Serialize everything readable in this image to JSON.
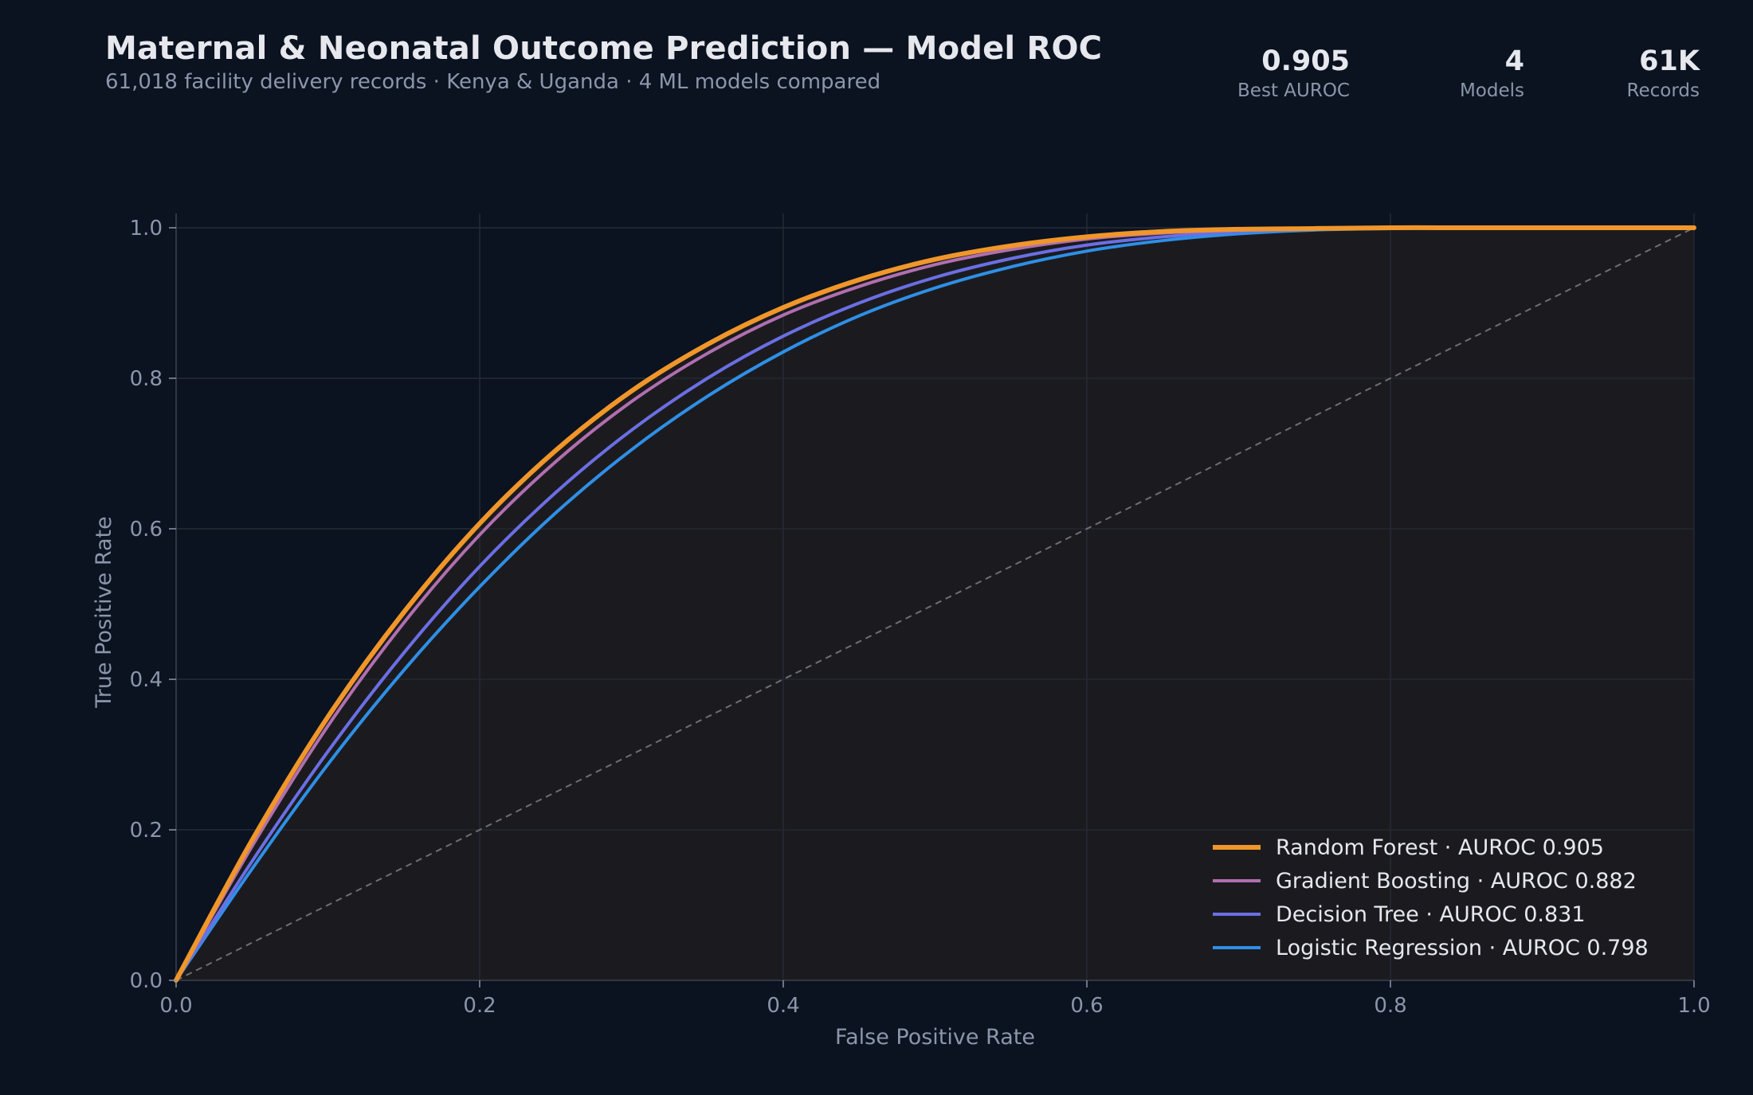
{
  "header": {
    "title": "Maternal & Neonatal Outcome Prediction — Model ROC",
    "subtitle": "61,018 facility delivery records · Kenya & Uganda · 4 ML models compared"
  },
  "kpis": [
    {
      "value": "0.905",
      "label": "Best AUROC"
    },
    {
      "value": "4",
      "label": "Models"
    },
    {
      "value": "61K",
      "label": "Records"
    }
  ],
  "chart_data": {
    "type": "line",
    "title": "",
    "xlabel": "False Positive Rate",
    "ylabel": "True Positive Rate",
    "xlim": [
      0,
      1
    ],
    "ylim": [
      0,
      1
    ],
    "x_ticks": [
      "0.0",
      "0.2",
      "0.4",
      "0.6",
      "0.8",
      "1.0"
    ],
    "y_ticks": [
      "0.0",
      "0.2",
      "0.4",
      "0.6",
      "0.8",
      "1.0"
    ],
    "grid": true,
    "legend_position": "bottom-right",
    "diagonal_reference": true,
    "colors": {
      "background": "#0b1220",
      "plot_fill": "#1b1b1f",
      "grid": "#252a33",
      "diagonal": "#6e6e74"
    },
    "series": [
      {
        "name": "Random Forest",
        "legend_label": "Random Forest  ·  AUROC 0.905",
        "auroc": 0.905,
        "color": "#f0962a",
        "x": [
          0,
          0.05,
          0.1,
          0.15,
          0.2,
          0.25,
          0.3,
          0.35,
          0.4,
          0.45,
          0.5,
          0.55,
          0.6,
          0.65,
          0.7,
          0.75,
          0.8,
          0.85,
          0.9,
          0.95,
          1.0
        ],
        "y": [
          0,
          0.186,
          0.35,
          0.489,
          0.607,
          0.704,
          0.783,
          0.845,
          0.894,
          0.931,
          0.958,
          0.976,
          0.988,
          0.995,
          0.998,
          0.999,
          1.0,
          1.0,
          1.0,
          1.0,
          1.0
        ]
      },
      {
        "name": "Gradient Boosting",
        "legend_label": "Gradient Boosting  ·  AUROC 0.882",
        "auroc": 0.882,
        "color": "#b06fb0",
        "x": [
          0,
          0.05,
          0.1,
          0.15,
          0.2,
          0.25,
          0.3,
          0.35,
          0.4,
          0.45,
          0.5,
          0.55,
          0.6,
          0.65,
          0.7,
          0.75,
          0.8,
          0.85,
          0.9,
          0.95,
          1.0
        ],
        "y": [
          0,
          0.178,
          0.338,
          0.475,
          0.592,
          0.689,
          0.769,
          0.833,
          0.884,
          0.922,
          0.951,
          0.971,
          0.985,
          0.993,
          0.997,
          0.999,
          1.0,
          1.0,
          1.0,
          1.0,
          1.0
        ]
      },
      {
        "name": "Decision Tree",
        "legend_label": "Decision Tree  ·  AUROC 0.831",
        "auroc": 0.831,
        "color": "#6b6fe4",
        "x": [
          0,
          0.05,
          0.1,
          0.15,
          0.2,
          0.25,
          0.3,
          0.35,
          0.4,
          0.45,
          0.5,
          0.55,
          0.6,
          0.65,
          0.7,
          0.75,
          0.8,
          0.85,
          0.9,
          0.95,
          1.0
        ],
        "y": [
          0,
          0.158,
          0.304,
          0.435,
          0.55,
          0.648,
          0.731,
          0.8,
          0.856,
          0.9,
          0.934,
          0.959,
          0.977,
          0.988,
          0.995,
          0.998,
          1.0,
          1.0,
          1.0,
          1.0,
          1.0
        ]
      },
      {
        "name": "Logistic Regression",
        "legend_label": "Logistic Regression  ·  AUROC 0.798",
        "auroc": 0.798,
        "color": "#2f8fe6",
        "x": [
          0,
          0.05,
          0.1,
          0.15,
          0.2,
          0.25,
          0.3,
          0.35,
          0.4,
          0.45,
          0.5,
          0.55,
          0.6,
          0.65,
          0.7,
          0.75,
          0.8,
          0.85,
          0.9,
          0.95,
          1.0
        ],
        "y": [
          0,
          0.148,
          0.287,
          0.412,
          0.523,
          0.621,
          0.705,
          0.776,
          0.835,
          0.883,
          0.92,
          0.948,
          0.969,
          0.983,
          0.992,
          0.997,
          0.999,
          1.0,
          1.0,
          1.0,
          1.0
        ]
      }
    ]
  }
}
